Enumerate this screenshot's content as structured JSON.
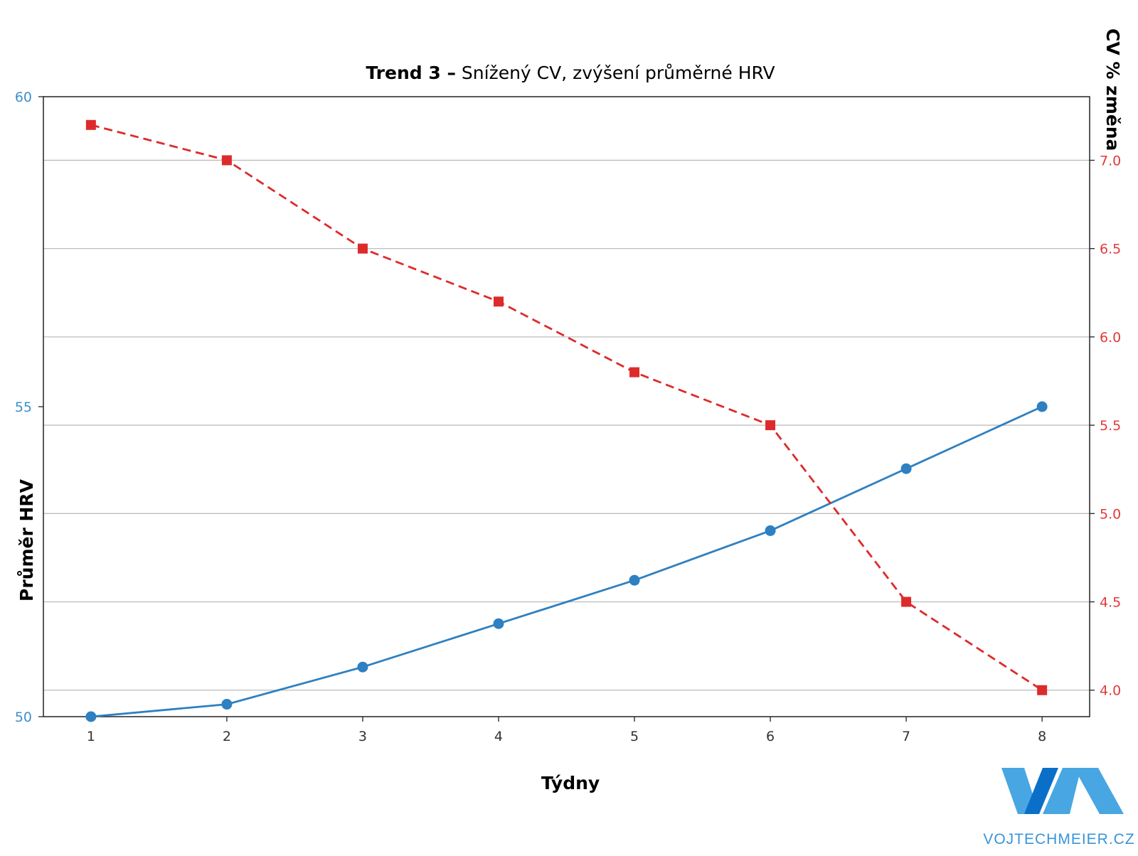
{
  "title": {
    "bold": "Trend 3 –",
    "rest": "Snížený CV, zvýšení průměrné HRV"
  },
  "brand": {
    "text": "VOJTECHMEIER.CZ",
    "logo_letters": "VM"
  },
  "colors": {
    "hrv": "#2e80c0",
    "cv": "#dd2b2b",
    "left_ticks": "#3f8fcb",
    "right_ticks": "#e23a3a",
    "grid": "#bdbdbd",
    "logo_dark": "#0a6fc9",
    "logo_light": "#48a6e3"
  },
  "chart_data": {
    "type": "line",
    "xlabel": "Týdny",
    "ylabel": "Průměr HRV",
    "y2label": "CV % změna",
    "x": [
      1,
      2,
      3,
      4,
      5,
      6,
      7,
      8
    ],
    "xticks": [
      "1",
      "2",
      "3",
      "4",
      "5",
      "6",
      "7",
      "8"
    ],
    "xlim": [
      0.65,
      8.35
    ],
    "ylim": [
      50,
      60
    ],
    "yticks": [
      50,
      55,
      60
    ],
    "y2lim": [
      3.85,
      7.36
    ],
    "y2ticks": [
      "4.0",
      "4.5",
      "5.0",
      "5.5",
      "6.0",
      "6.5",
      "7.0"
    ],
    "grid": "horizontal, right axis",
    "series": [
      {
        "axis": "left",
        "marker": "circle",
        "style": "solid",
        "values": [
          50.0,
          50.2,
          50.8,
          51.5,
          52.2,
          53.0,
          54.0,
          55.0
        ]
      },
      {
        "axis": "right",
        "marker": "square",
        "style": "dashed",
        "values": [
          7.2,
          7.0,
          6.5,
          6.2,
          5.8,
          5.5,
          4.5,
          4.0
        ]
      }
    ]
  }
}
